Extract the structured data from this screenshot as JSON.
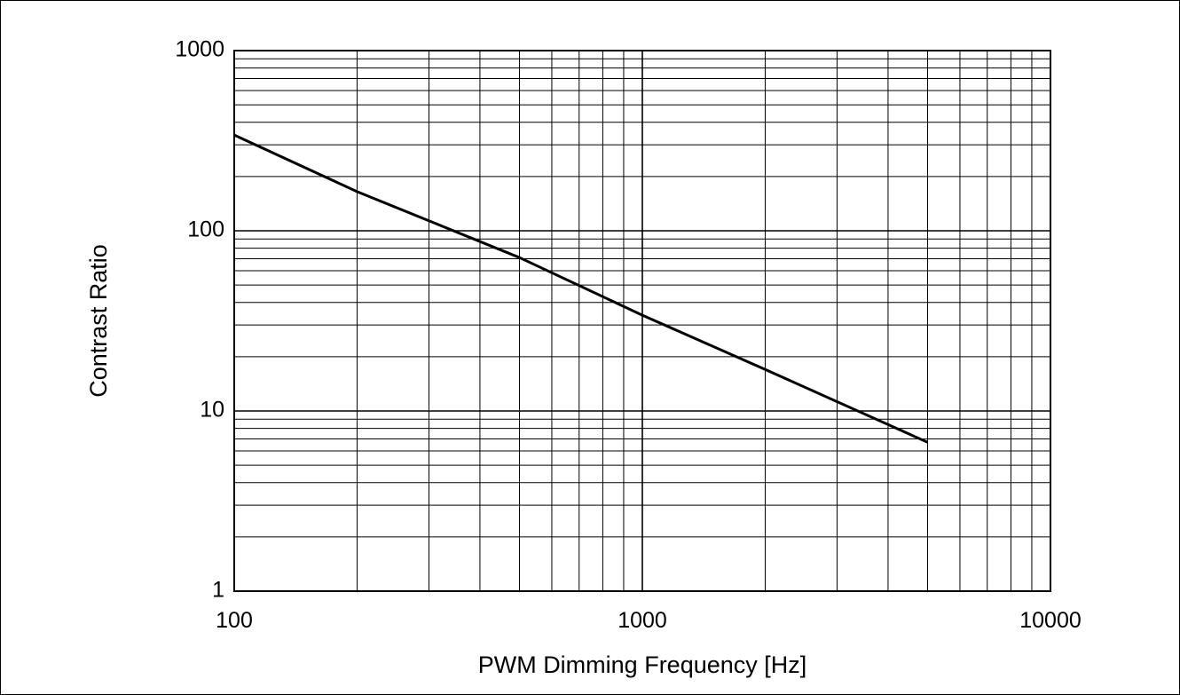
{
  "chart_data": {
    "type": "line",
    "title": "",
    "xlabel": "PWM Dimming Frequency [Hz]",
    "ylabel": "Contrast Ratio",
    "xscale": "log",
    "yscale": "log",
    "xlim": [
      100,
      10000
    ],
    "ylim": [
      1,
      1000
    ],
    "x_tick_labels": [
      "100",
      "1000",
      "10000"
    ],
    "y_tick_labels": [
      "1",
      "10",
      "100",
      "1000"
    ],
    "grid": true,
    "legend": "none",
    "series": [
      {
        "x": [
          100,
          200,
          500,
          1000,
          2000,
          5000
        ],
        "y": [
          340,
          165,
          71,
          34,
          17,
          6.7
        ]
      }
    ],
    "colors": {
      "line": "#000000",
      "grid": "#000000",
      "background": "#ffffff"
    }
  }
}
